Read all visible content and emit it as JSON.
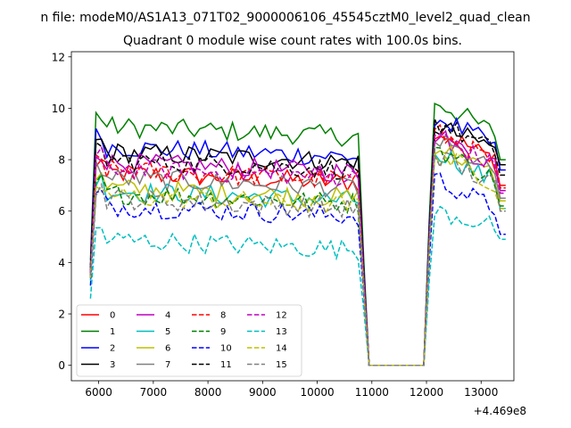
{
  "figure": {
    "suptitle": "n file: modeM0/AS1A13_071T02_9000006106_45545cztM0_level2_quad_clean",
    "title": "Quadrant 0 module wise count rates with 100.0s bins.",
    "offset_text": "+4.469e8"
  },
  "chart_data": {
    "type": "line",
    "title": "Quadrant 0 module wise count rates with 100.0s bins.",
    "xlabel": "",
    "ylabel": "",
    "x_offset": "+4.469e8",
    "xlim": [
      5500,
      13600
    ],
    "ylim": [
      -0.6,
      12.2
    ],
    "xticks": [
      6000,
      7000,
      8000,
      9000,
      10000,
      11000,
      12000,
      13000
    ],
    "yticks": [
      0,
      2,
      4,
      6,
      8,
      10,
      12
    ],
    "grid": false,
    "legend": {
      "location": "lower-left",
      "ncol": 4
    },
    "x": {
      "start": 5850,
      "step": 100,
      "count": 77
    },
    "profile": {
      "low_start": 5850,
      "ramp_end": 6050,
      "on_1_end": 10750,
      "fall_end": 10950,
      "gap_end": 12050,
      "rise_end": 12150,
      "on_2_end": 13350
    },
    "series": [
      {
        "name": "0",
        "color": "#ff0000",
        "dash": "solid",
        "start": 3.4,
        "level1": 7.5,
        "level2": 9.2,
        "end": 7.0
      },
      {
        "name": "1",
        "color": "#008000",
        "dash": "solid",
        "start": 4.1,
        "level1": 9.3,
        "level2": 10.3,
        "end": 8.0
      },
      {
        "name": "2",
        "color": "#0000ff",
        "dash": "solid",
        "start": 3.9,
        "level1": 8.5,
        "level2": 9.7,
        "end": 7.6
      },
      {
        "name": "3",
        "color": "#000000",
        "dash": "solid",
        "start": 3.7,
        "level1": 8.3,
        "level2": 9.3,
        "end": 7.8
      },
      {
        "name": "4",
        "color": "#bf00bf",
        "dash": "solid",
        "start": 3.6,
        "level1": 7.9,
        "level2": 9.0,
        "end": 6.8
      },
      {
        "name": "5",
        "color": "#00bfbf",
        "dash": "solid",
        "start": 3.3,
        "level1": 6.8,
        "level2": 8.4,
        "end": 6.1
      },
      {
        "name": "6",
        "color": "#bfbf00",
        "dash": "solid",
        "start": 3.5,
        "level1": 6.9,
        "level2": 8.6,
        "end": 6.4
      },
      {
        "name": "7",
        "color": "#808080",
        "dash": "solid",
        "start": 3.6,
        "level1": 7.3,
        "level2": 8.8,
        "end": 6.5
      },
      {
        "name": "8",
        "color": "#ff0000",
        "dash": "dashed",
        "start": 3.5,
        "level1": 7.6,
        "level2": 9.1,
        "end": 6.9
      },
      {
        "name": "9",
        "color": "#008000",
        "dash": "dashed",
        "start": 3.4,
        "level1": 6.7,
        "level2": 8.5,
        "end": 6.2
      },
      {
        "name": "10",
        "color": "#0000ff",
        "dash": "dashed",
        "start": 3.1,
        "level1": 6.2,
        "level2": 7.3,
        "end": 5.1
      },
      {
        "name": "11",
        "color": "#000000",
        "dash": "dashed",
        "start": 3.8,
        "level1": 8.0,
        "level2": 9.5,
        "end": 7.4
      },
      {
        "name": "12",
        "color": "#bf00bf",
        "dash": "dashed",
        "start": 3.6,
        "level1": 7.7,
        "level2": 9.0,
        "end": 6.7
      },
      {
        "name": "13",
        "color": "#00bfbf",
        "dash": "dashed",
        "start": 2.6,
        "level1": 4.9,
        "level2": 6.0,
        "end": 4.9
      },
      {
        "name": "14",
        "color": "#bfbf00",
        "dash": "dashed",
        "start": 3.4,
        "level1": 6.6,
        "level2": 8.3,
        "end": 6.1
      },
      {
        "name": "15",
        "color": "#808080",
        "dash": "dashed",
        "start": 3.5,
        "level1": 6.5,
        "level2": 8.2,
        "end": 6.0
      }
    ]
  }
}
